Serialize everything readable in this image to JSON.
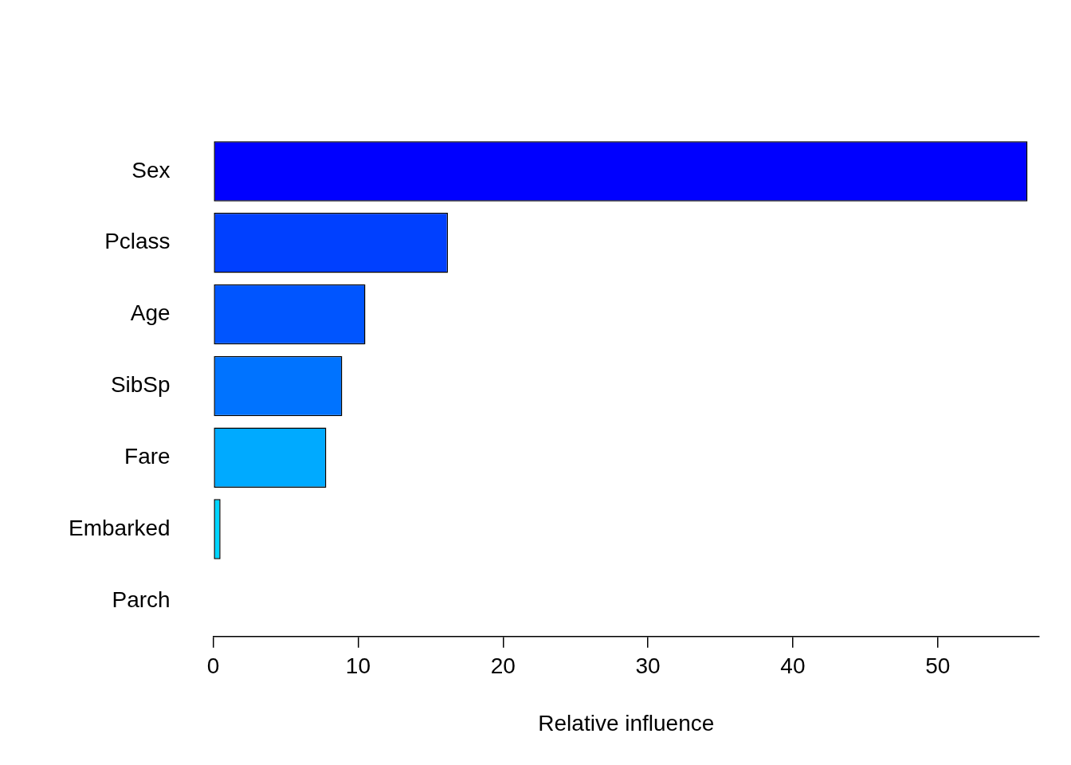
{
  "chart_data": {
    "type": "bar",
    "orientation": "horizontal",
    "categories": [
      "Sex",
      "Pclass",
      "Age",
      "SibSp",
      "Fare",
      "Embarked",
      "Parch"
    ],
    "values": [
      56.2,
      16.2,
      10.5,
      8.9,
      7.8,
      0.5,
      0
    ],
    "colors": [
      "#0000ff",
      "#0040ff",
      "#0055ff",
      "#0073ff",
      "#00aaff",
      "#00d5ff",
      "#00ffff"
    ],
    "x_label": "Relative influence",
    "xlim": [
      0,
      57
    ],
    "xticks": [
      0,
      10,
      20,
      30,
      40,
      50
    ],
    "grid": false
  }
}
